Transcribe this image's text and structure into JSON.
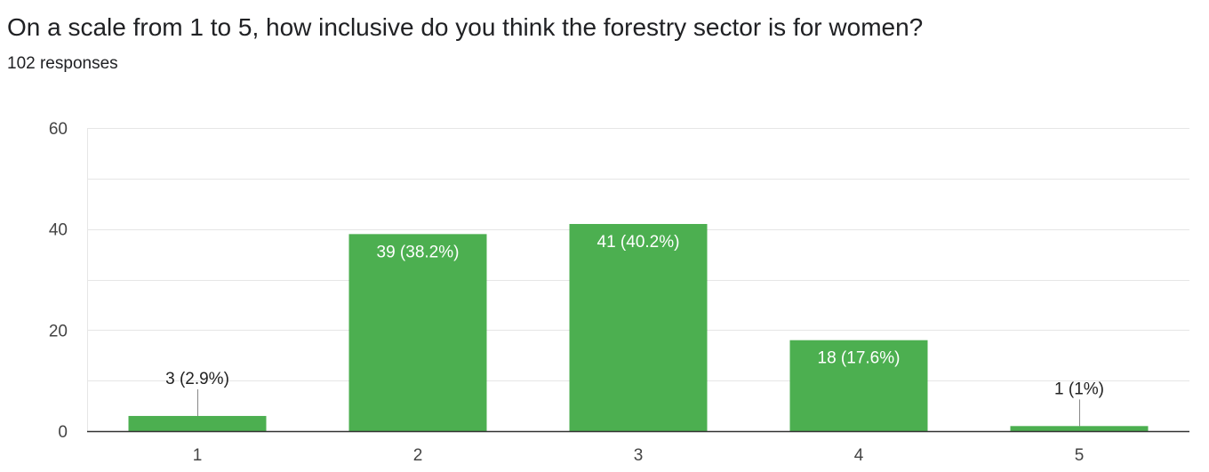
{
  "header": {
    "question": "On a scale from 1 to 5, how inclusive do you think the forestry sector is for women?",
    "responses": "102 responses"
  },
  "colors": {
    "bar": "#4caf50",
    "grid": "#e6e6e6",
    "axis": "#333333",
    "label_inside": "#ffffff",
    "label_outside": "#222222",
    "tick_text": "#444444"
  },
  "chart_data": {
    "type": "bar",
    "title": "",
    "xlabel": "",
    "ylabel": "",
    "categories": [
      "1",
      "2",
      "3",
      "4",
      "5"
    ],
    "values": [
      3,
      39,
      41,
      18,
      1
    ],
    "data_labels": [
      "3 (2.9%)",
      "39 (38.2%)",
      "41 (40.2%)",
      "18 (17.6%)",
      "1 (1%)"
    ],
    "ylim": [
      0,
      60
    ],
    "yticks": [
      0,
      20,
      40,
      60
    ],
    "grid": true,
    "legend": "none"
  }
}
